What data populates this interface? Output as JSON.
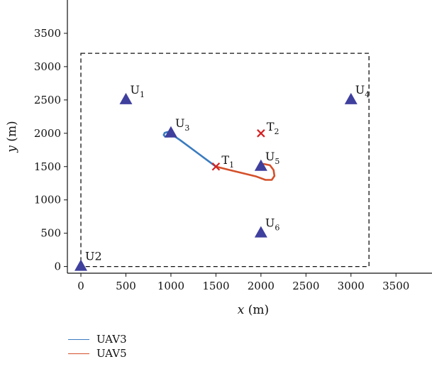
{
  "chart_data": {
    "type": "scatter",
    "xlabel_var": "x",
    "xlabel_unit": " (m)",
    "ylabel_var": "y",
    "ylabel_unit": " (m)",
    "xlim": [
      -150,
      3900
    ],
    "ylim": [
      -100,
      4000
    ],
    "x_ticks": [
      0,
      500,
      1000,
      1500,
      2000,
      2500,
      3000,
      3500
    ],
    "y_ticks": [
      0,
      500,
      1000,
      1500,
      2000,
      2500,
      3000,
      3500
    ],
    "x_tick_labels": [
      "0",
      "500",
      "1000",
      "1500",
      "2000",
      "2500",
      "3000",
      "3500"
    ],
    "y_tick_labels": [
      "0",
      "500",
      "1000",
      "1500",
      "2000",
      "2500",
      "3000",
      "3500"
    ],
    "area_boundary": {
      "x": [
        0,
        3200
      ],
      "y": [
        0,
        3200
      ]
    },
    "users": [
      {
        "base": "U",
        "sub": "1",
        "x": 500,
        "y": 2500
      },
      {
        "base": "U2",
        "sub": "",
        "x": 0,
        "y": 0
      },
      {
        "base": "U",
        "sub": "3",
        "x": 1000,
        "y": 2000
      },
      {
        "base": "U",
        "sub": "4",
        "x": 3000,
        "y": 2500
      },
      {
        "base": "U",
        "sub": "5",
        "x": 2000,
        "y": 1500
      },
      {
        "base": "U",
        "sub": "6",
        "x": 2000,
        "y": 500
      }
    ],
    "targets": [
      {
        "base": "T",
        "sub": "1",
        "x": 1500,
        "y": 1500
      },
      {
        "base": "T",
        "sub": "2",
        "x": 2000,
        "y": 2000
      }
    ],
    "series": [
      {
        "name": "UAV3",
        "color": "#3a7bbf",
        "x": [
          1500,
          1400,
          1300,
          1200,
          1100,
          1000,
          990,
          965,
          930,
          920,
          935,
          965,
          995,
          990
        ],
        "y": [
          1500,
          1600,
          1700,
          1800,
          1900,
          1990,
          2000,
          2020,
          2005,
          1975,
          1950,
          1950,
          1975,
          2000
        ]
      },
      {
        "name": "UAV5",
        "color": "#d4502a",
        "x": [
          1500,
          1650,
          1800,
          1950,
          2050,
          2120,
          2150,
          2140,
          2100,
          2030,
          2000
        ],
        "y": [
          1500,
          1450,
          1400,
          1350,
          1300,
          1300,
          1360,
          1450,
          1520,
          1540,
          1520
        ]
      }
    ]
  }
}
